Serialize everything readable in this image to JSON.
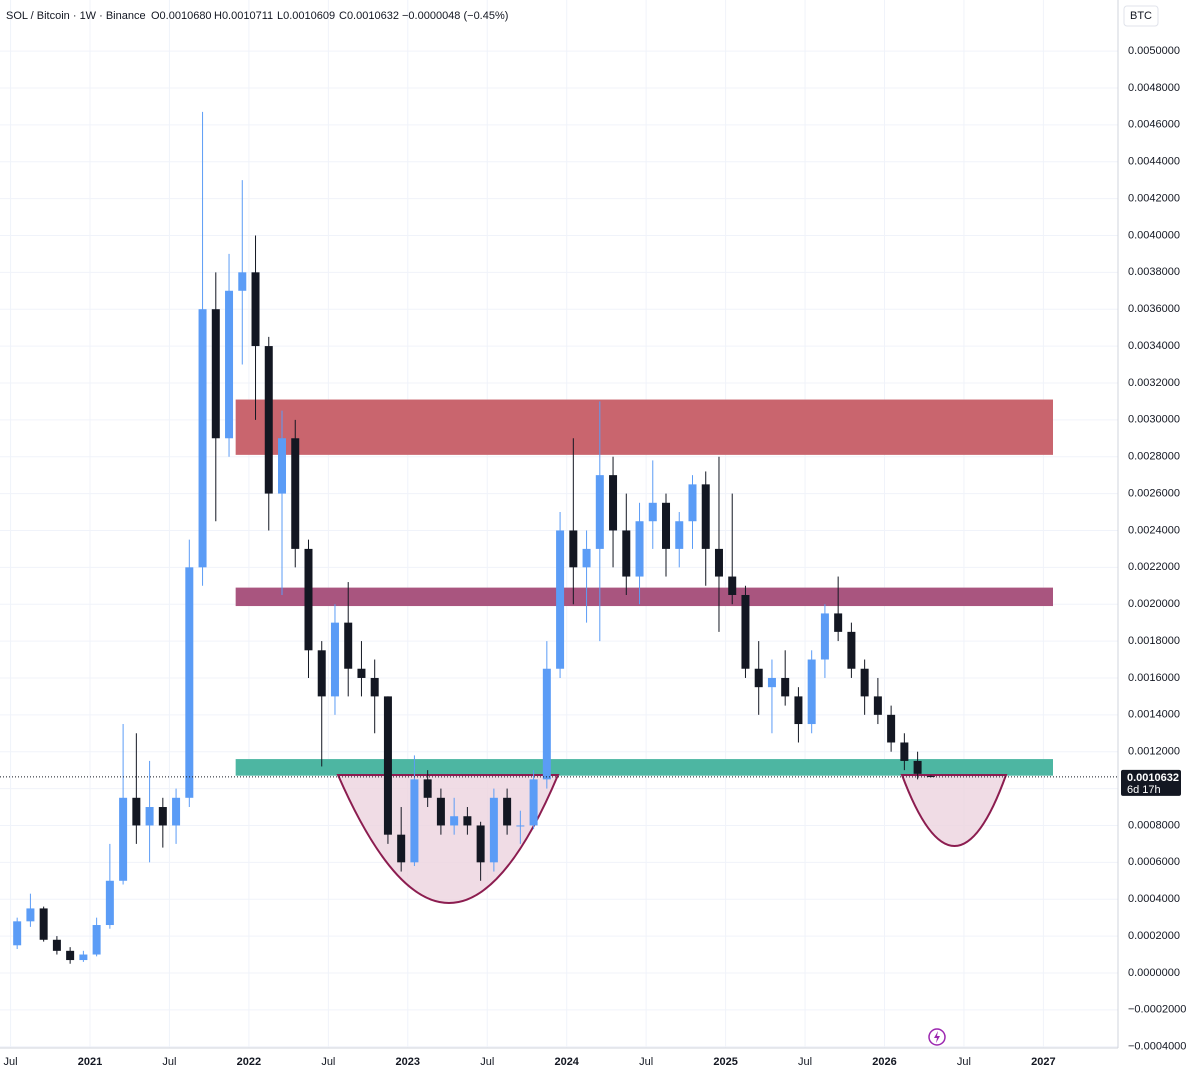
{
  "header": {
    "symbol": "SOL / Bitcoin · 1W · Binance",
    "open": "O0.0010680",
    "high": "H0.0010711",
    "low": "L0.0010609",
    "close": "C0.0010632",
    "change": "−0.0000048 (−0.45%)"
  },
  "chart_data": {
    "type": "candlestick",
    "currency": "BTC",
    "up_color": "#5b9cf6",
    "down_color": "#131722",
    "x": [
      "2020-07",
      "2020-08",
      "2020-09",
      "2020-10",
      "2020-11",
      "2020-12",
      "2021-01",
      "2021-02",
      "2021-03",
      "2021-04",
      "2021-05",
      "2021-06",
      "2021-07",
      "2021-08",
      "2021-09",
      "2021-10",
      "2021-11",
      "2021-12",
      "2022-01",
      "2022-02",
      "2022-03",
      "2022-04",
      "2022-05",
      "2022-06",
      "2022-07",
      "2022-08",
      "2022-09",
      "2022-10",
      "2022-11",
      "2022-12",
      "2023-01",
      "2023-02",
      "2023-03",
      "2023-04",
      "2023-05",
      "2023-06",
      "2023-07",
      "2023-08",
      "2023-09",
      "2023-10",
      "2023-11",
      "2023-12",
      "2024-01",
      "2024-02",
      "2024-03",
      "2024-04",
      "2024-05",
      "2024-06",
      "2024-07",
      "2024-08",
      "2024-09",
      "2024-10",
      "2024-11",
      "2024-12",
      "2025-01",
      "2025-02",
      "2025-03",
      "2025-04",
      "2025-05",
      "2025-06",
      "2025-07",
      "2025-08",
      "2025-09",
      "2025-10",
      "2025-11",
      "2025-12",
      "2026-01",
      "2026-02",
      "2026-03",
      "2026-04"
    ],
    "open": [
      0.00015,
      0.00028,
      0.00035,
      0.00018,
      0.00012,
      7e-05,
      0.0001,
      0.00026,
      0.0005,
      0.00095,
      0.0008,
      0.0009,
      0.0008,
      0.00095,
      0.0022,
      0.0036,
      0.0029,
      0.0037,
      0.0038,
      0.0034,
      0.0026,
      0.0029,
      0.0023,
      0.00175,
      0.0015,
      0.0019,
      0.00165,
      0.0016,
      0.0015,
      0.00075,
      0.0006,
      0.00105,
      0.00095,
      0.0008,
      0.00085,
      0.0008,
      0.0006,
      0.00095,
      0.0008,
      0.0008,
      0.00105,
      0.00165,
      0.0024,
      0.0022,
      0.0023,
      0.0027,
      0.0024,
      0.00215,
      0.00245,
      0.00255,
      0.0023,
      0.00245,
      0.00265,
      0.0023,
      0.00215,
      0.00205,
      0.00165,
      0.00155,
      0.0016,
      0.0015,
      0.00135,
      0.0017,
      0.00195,
      0.00185,
      0.00165,
      0.0015,
      0.0014,
      0.00125,
      0.00115,
      0.001068
    ],
    "high": [
      0.0003,
      0.00043,
      0.00036,
      0.0002,
      0.00014,
      0.00012,
      0.0003,
      0.0007,
      0.00135,
      0.0013,
      0.00115,
      0.00095,
      0.001,
      0.00235,
      0.00467,
      0.0038,
      0.0039,
      0.0043,
      0.004,
      0.00345,
      0.00305,
      0.003,
      0.00235,
      0.0018,
      0.002,
      0.00212,
      0.0018,
      0.0017,
      0.0015,
      0.0009,
      0.00118,
      0.0011,
      0.001,
      0.00095,
      0.0009,
      0.00082,
      0.001,
      0.001,
      0.00088,
      0.0011,
      0.0018,
      0.0025,
      0.0029,
      0.0024,
      0.0031,
      0.0028,
      0.0026,
      0.00255,
      0.00278,
      0.0026,
      0.0025,
      0.0027,
      0.00272,
      0.0028,
      0.0026,
      0.0021,
      0.0018,
      0.0017,
      0.00175,
      0.00155,
      0.00175,
      0.002,
      0.00215,
      0.0019,
      0.0017,
      0.0016,
      0.00145,
      0.0013,
      0.0012,
      0.0010711
    ],
    "low": [
      0.00013,
      0.00025,
      0.00017,
      0.0001,
      5e-05,
      6e-05,
      9e-05,
      0.00024,
      0.00048,
      0.0007,
      0.0006,
      0.00068,
      0.0007,
      0.0009,
      0.0021,
      0.00245,
      0.0028,
      0.0033,
      0.003,
      0.0024,
      0.00205,
      0.0022,
      0.0016,
      0.00112,
      0.0014,
      0.0015,
      0.0015,
      0.0013,
      0.0007,
      0.00055,
      0.00058,
      0.0009,
      0.00075,
      0.00075,
      0.00075,
      0.0005,
      0.00055,
      0.00075,
      0.0007,
      0.00078,
      0.001,
      0.0016,
      0.002,
      0.0019,
      0.0018,
      0.0022,
      0.00205,
      0.002,
      0.0023,
      0.00215,
      0.0022,
      0.0023,
      0.0021,
      0.00185,
      0.002,
      0.0016,
      0.0014,
      0.0013,
      0.00145,
      0.00125,
      0.0013,
      0.0016,
      0.0018,
      0.0016,
      0.0014,
      0.00135,
      0.0012,
      0.0011,
      0.00105,
      0.0010609
    ],
    "close": [
      0.00028,
      0.00035,
      0.00018,
      0.00012,
      7e-05,
      0.0001,
      0.00026,
      0.0005,
      0.00095,
      0.0008,
      0.0009,
      0.0008,
      0.00095,
      0.0022,
      0.0036,
      0.0029,
      0.0037,
      0.0038,
      0.0034,
      0.0026,
      0.0029,
      0.0023,
      0.00175,
      0.0015,
      0.0019,
      0.00165,
      0.0016,
      0.0015,
      0.00075,
      0.0006,
      0.00105,
      0.00095,
      0.0008,
      0.00085,
      0.0008,
      0.0006,
      0.00095,
      0.0008,
      0.0008,
      0.00105,
      0.00165,
      0.0024,
      0.0022,
      0.0023,
      0.0027,
      0.0024,
      0.00215,
      0.00245,
      0.00255,
      0.0023,
      0.00245,
      0.00265,
      0.0023,
      0.00215,
      0.00205,
      0.00165,
      0.00155,
      0.0016,
      0.0015,
      0.00135,
      0.0017,
      0.00195,
      0.00185,
      0.00165,
      0.0015,
      0.0014,
      0.00125,
      0.00115,
      0.00108,
      0.0010632
    ],
    "zones": [
      {
        "from": "2021-12",
        "lo": 0.00281,
        "hi": 0.00311,
        "color": "#c9656e"
      },
      {
        "from": "2021-12",
        "lo": 0.00199,
        "hi": 0.00209,
        "color": "#a9557f"
      },
      {
        "from": "2021-12",
        "lo": 0.00107,
        "hi": 0.00116,
        "color": "#4db6a2"
      }
    ],
    "last_price": 0.0010632,
    "last_price_label": "0.0010632",
    "countdown": "6d 17h",
    "ylim": [
      -0.000407,
      0.005277
    ],
    "yticks": [
      {
        "value": 0.005,
        "label": "0.0050000"
      },
      {
        "value": 0.0048,
        "label": "0.0048000"
      },
      {
        "value": 0.0046,
        "label": "0.0046000"
      },
      {
        "value": 0.0044,
        "label": "0.0044000"
      },
      {
        "value": 0.0042,
        "label": "0.0042000"
      },
      {
        "value": 0.004,
        "label": "0.0040000"
      },
      {
        "value": 0.0038,
        "label": "0.0038000"
      },
      {
        "value": 0.0036,
        "label": "0.0036000"
      },
      {
        "value": 0.0034,
        "label": "0.0034000"
      },
      {
        "value": 0.0032,
        "label": "0.0032000"
      },
      {
        "value": 0.003,
        "label": "0.0030000"
      },
      {
        "value": 0.0028,
        "label": "0.0028000"
      },
      {
        "value": 0.0026,
        "label": "0.0026000"
      },
      {
        "value": 0.0024,
        "label": "0.0024000"
      },
      {
        "value": 0.0022,
        "label": "0.0022000"
      },
      {
        "value": 0.002,
        "label": "0.0020000"
      },
      {
        "value": 0.0018,
        "label": "0.0018000"
      },
      {
        "value": 0.0016,
        "label": "0.0016000"
      },
      {
        "value": 0.0014,
        "label": "0.0014000"
      },
      {
        "value": 0.0012,
        "label": "0.0012000"
      },
      {
        "value": 0.001,
        "label": "0.0010000"
      },
      {
        "value": 0.0008,
        "label": "0.0008000"
      },
      {
        "value": 0.0006,
        "label": "0.0006000"
      },
      {
        "value": 0.0004,
        "label": "0.0004000"
      },
      {
        "value": 0.0002,
        "label": "0.0002000"
      },
      {
        "value": 0,
        "label": "0.0000000"
      },
      {
        "value": -0.0002,
        "label": "−0.0002000"
      },
      {
        "value": -0.0004,
        "label": "−0.0004000"
      }
    ],
    "xticks": [
      {
        "value": "2020-07",
        "label": "Jul"
      },
      {
        "value": "2021-01",
        "label": "2021"
      },
      {
        "value": "2021-07",
        "label": "Jul"
      },
      {
        "value": "2022-01",
        "label": "2022"
      },
      {
        "value": "2022-07",
        "label": "Jul"
      },
      {
        "value": "2023-01",
        "label": "2023"
      },
      {
        "value": "2023-07",
        "label": "Jul"
      },
      {
        "value": "2024-01",
        "label": "2024"
      },
      {
        "value": "2024-07",
        "label": "Jul"
      },
      {
        "value": "2025-01",
        "label": "2025"
      },
      {
        "value": "2025-07",
        "label": "Jul"
      },
      {
        "value": "2026-01",
        "label": "2026"
      },
      {
        "value": "2026-07",
        "label": "Jul"
      },
      {
        "value": "2027-01",
        "label": "2027"
      }
    ],
    "grid": true
  }
}
